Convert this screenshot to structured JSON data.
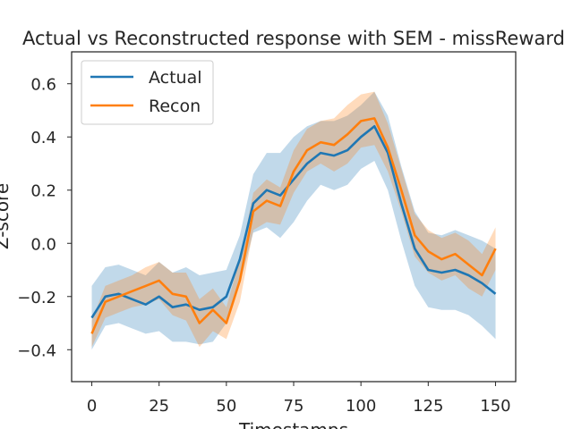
{
  "chart_data": {
    "type": "line",
    "title": "Actual vs Reconstructed response with SEM - missReward",
    "xlabel": "Timestamps",
    "ylabel": "Z-score",
    "xlim": [
      -7.5,
      157.5
    ],
    "ylim": [
      -0.52,
      0.72
    ],
    "xticks": [
      0,
      25,
      50,
      75,
      100,
      125,
      150
    ],
    "yticks": [
      -0.4,
      -0.2,
      0.0,
      0.2,
      0.4,
      0.6
    ],
    "xtick_labels": [
      "0",
      "25",
      "50",
      "75",
      "100",
      "125",
      "150"
    ],
    "ytick_labels": [
      "−0.4",
      "−0.2",
      "0.0",
      "0.2",
      "0.4",
      "0.6"
    ],
    "legend_position": "top-left",
    "grid": false,
    "series": [
      {
        "name": "Actual",
        "color": "#1f77b4",
        "x": [
          0,
          5,
          10,
          15,
          20,
          25,
          30,
          35,
          40,
          45,
          50,
          55,
          60,
          65,
          70,
          75,
          80,
          85,
          90,
          95,
          100,
          105,
          110,
          115,
          120,
          125,
          130,
          135,
          140,
          145,
          150
        ],
        "y": [
          -0.28,
          -0.2,
          -0.19,
          -0.21,
          -0.23,
          -0.2,
          -0.24,
          -0.23,
          -0.25,
          -0.24,
          -0.2,
          -0.06,
          0.15,
          0.2,
          0.18,
          0.24,
          0.3,
          0.34,
          0.33,
          0.35,
          0.4,
          0.44,
          0.34,
          0.15,
          -0.02,
          -0.1,
          -0.11,
          -0.1,
          -0.12,
          -0.15,
          -0.19
        ],
        "sem_lower": [
          -0.4,
          -0.31,
          -0.3,
          -0.32,
          -0.34,
          -0.33,
          -0.37,
          -0.37,
          -0.38,
          -0.37,
          -0.3,
          -0.15,
          0.04,
          0.06,
          0.02,
          0.08,
          0.16,
          0.22,
          0.2,
          0.22,
          0.28,
          0.31,
          0.2,
          0.01,
          -0.16,
          -0.24,
          -0.25,
          -0.25,
          -0.27,
          -0.31,
          -0.36
        ],
        "sem_upper": [
          -0.16,
          -0.09,
          -0.08,
          -0.1,
          -0.12,
          -0.07,
          -0.11,
          -0.09,
          -0.12,
          -0.11,
          -0.1,
          0.03,
          0.26,
          0.34,
          0.34,
          0.4,
          0.44,
          0.46,
          0.46,
          0.48,
          0.52,
          0.57,
          0.48,
          0.29,
          0.12,
          0.04,
          0.03,
          0.05,
          0.03,
          0.01,
          -0.02
        ]
      },
      {
        "name": "Recon",
        "color": "#ff7f0e",
        "x": [
          0,
          5,
          10,
          15,
          20,
          25,
          30,
          35,
          40,
          45,
          50,
          55,
          60,
          65,
          70,
          75,
          80,
          85,
          90,
          95,
          100,
          105,
          110,
          115,
          120,
          125,
          130,
          135,
          140,
          145,
          150
        ],
        "y": [
          -0.34,
          -0.22,
          -0.2,
          -0.18,
          -0.16,
          -0.14,
          -0.19,
          -0.2,
          -0.3,
          -0.25,
          -0.3,
          -0.14,
          0.12,
          0.16,
          0.14,
          0.27,
          0.35,
          0.38,
          0.37,
          0.41,
          0.46,
          0.47,
          0.36,
          0.2,
          0.03,
          -0.03,
          -0.06,
          -0.04,
          -0.08,
          -0.12,
          -0.02
        ],
        "sem_lower": [
          -0.39,
          -0.28,
          -0.26,
          -0.24,
          -0.23,
          -0.21,
          -0.27,
          -0.29,
          -0.39,
          -0.33,
          -0.36,
          -0.22,
          0.05,
          0.08,
          0.07,
          0.19,
          0.27,
          0.3,
          0.27,
          0.3,
          0.36,
          0.37,
          0.27,
          0.12,
          -0.05,
          -0.11,
          -0.14,
          -0.12,
          -0.17,
          -0.2,
          -0.1
        ],
        "sem_upper": [
          -0.29,
          -0.16,
          -0.14,
          -0.12,
          -0.09,
          -0.07,
          -0.11,
          -0.11,
          -0.21,
          -0.17,
          -0.24,
          -0.06,
          0.19,
          0.24,
          0.21,
          0.35,
          0.43,
          0.46,
          0.47,
          0.52,
          0.56,
          0.57,
          0.45,
          0.28,
          0.11,
          0.05,
          0.02,
          0.04,
          0.01,
          -0.04,
          0.06
        ]
      }
    ]
  }
}
